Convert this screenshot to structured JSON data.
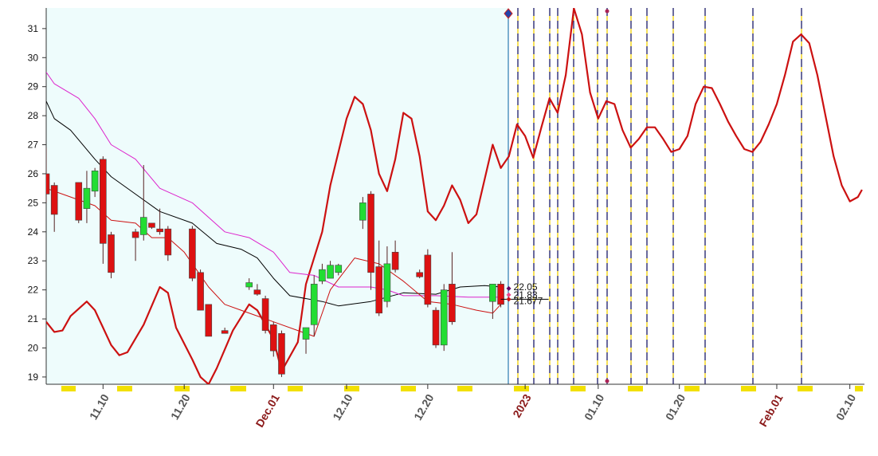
{
  "chart_data": {
    "type": "candlestick",
    "xlim": [
      2,
      102.8
    ],
    "ylim": [
      18.75,
      31.71
    ],
    "yticks": [
      19,
      20,
      21,
      22,
      23,
      24,
      25,
      26,
      27,
      28,
      29,
      30,
      31
    ],
    "xticks": [
      {
        "value": 9,
        "label": "11.10",
        "color": "#555555"
      },
      {
        "value": 19,
        "label": "11.20",
        "color": "#555555"
      },
      {
        "value": 30,
        "label": "Dec.01",
        "color": "#8b1a1a"
      },
      {
        "value": 39,
        "label": "12.10",
        "color": "#555555"
      },
      {
        "value": 49,
        "label": "12.20",
        "color": "#555555"
      },
      {
        "value": 61,
        "label": "2023",
        "color": "#8b1a1a"
      },
      {
        "value": 70,
        "label": "01.10",
        "color": "#555555"
      },
      {
        "value": 80,
        "label": "01.20",
        "color": "#555555"
      },
      {
        "value": 92,
        "label": "Feb.01",
        "color": "#8b1a1a"
      },
      {
        "value": 101,
        "label": "02.10",
        "color": "#555555"
      }
    ],
    "up_color": "#22dd33",
    "down_color": "#dd1111",
    "candles": {
      "x": [
        2,
        3,
        6,
        7,
        8,
        9,
        10,
        13,
        14,
        15,
        16,
        17,
        20,
        21,
        22,
        24,
        27,
        28,
        29,
        30,
        31,
        34,
        35,
        36,
        37,
        38,
        41,
        42,
        43,
        44,
        45,
        48,
        49,
        50,
        51,
        52,
        57,
        58
      ],
      "open": [
        26.0,
        25.6,
        25.7,
        24.8,
        25.4,
        26.5,
        23.9,
        24.0,
        23.9,
        24.3,
        24.1,
        24.1,
        24.1,
        22.6,
        21.5,
        20.6,
        22.1,
        22.0,
        21.7,
        20.8,
        20.5,
        20.3,
        20.8,
        22.3,
        22.4,
        22.6,
        24.4,
        25.3,
        22.8,
        21.6,
        23.3,
        22.6,
        23.2,
        21.3,
        20.1,
        22.2,
        21.6,
        22.2
      ],
      "high": [
        26.9,
        25.7,
        25.7,
        26.1,
        26.2,
        26.6,
        24.0,
        24.1,
        26.3,
        24.3,
        24.8,
        24.2,
        24.2,
        22.7,
        21.5,
        20.7,
        22.4,
        22.2,
        21.8,
        20.9,
        20.6,
        20.7,
        22.5,
        22.9,
        23.0,
        22.9,
        25.2,
        25.4,
        23.7,
        23.5,
        23.7,
        22.7,
        23.4,
        21.4,
        22.2,
        23.3,
        22.2,
        22.3
      ],
      "low": [
        25.0,
        24.0,
        24.3,
        24.3,
        25.2,
        22.9,
        22.4,
        23.0,
        23.7,
        24.1,
        23.9,
        23.0,
        22.3,
        21.3,
        20.4,
        20.5,
        22.0,
        21.8,
        20.5,
        19.7,
        19.0,
        19.8,
        20.4,
        22.2,
        22.4,
        22.5,
        24.1,
        22.0,
        21.1,
        21.4,
        22.6,
        22.4,
        21.4,
        20.0,
        19.9,
        20.8,
        21.0,
        21.4
      ],
      "close": [
        25.3,
        24.6,
        24.4,
        25.5,
        26.1,
        23.6,
        22.6,
        23.8,
        24.5,
        24.15,
        24.0,
        23.2,
        22.4,
        21.3,
        20.4,
        20.5,
        22.25,
        21.85,
        20.6,
        19.9,
        19.1,
        20.7,
        22.2,
        22.7,
        22.85,
        22.85,
        25.0,
        22.6,
        21.2,
        22.9,
        22.7,
        22.45,
        21.5,
        20.1,
        22.0,
        20.9,
        22.2,
        21.5
      ]
    },
    "lines": [
      {
        "color": "#cc1111",
        "width": 2.2,
        "x": [
          2,
          3,
          4,
          5,
          7,
          8,
          10,
          11,
          12,
          14,
          16,
          17,
          18,
          20,
          21,
          22,
          23,
          25,
          27,
          28,
          30,
          31,
          33,
          34,
          36,
          37,
          39,
          40,
          41,
          42,
          43,
          44,
          45,
          46,
          47,
          48,
          49,
          50,
          51,
          52,
          53,
          54,
          55,
          56,
          57,
          58,
          59,
          60,
          61,
          62,
          63,
          64,
          65,
          66,
          67,
          68,
          69,
          70,
          71,
          72,
          73,
          74,
          75,
          76,
          77,
          78,
          79,
          80,
          81,
          82,
          83,
          84,
          85,
          86,
          87,
          88,
          89,
          90,
          91,
          92,
          93,
          94,
          95,
          96,
          97,
          98,
          99,
          100,
          101,
          102,
          102.5
        ],
        "values": [
          20.9,
          20.55,
          20.6,
          21.1,
          21.6,
          21.3,
          20.1,
          19.75,
          19.85,
          20.8,
          22.1,
          21.9,
          20.7,
          19.6,
          19.0,
          18.75,
          19.3,
          20.6,
          21.5,
          21.3,
          20.3,
          19.2,
          20.2,
          22.2,
          24.0,
          25.6,
          27.9,
          28.65,
          28.4,
          27.5,
          26.0,
          25.4,
          26.5,
          28.1,
          27.9,
          26.6,
          24.7,
          24.4,
          24.9,
          25.6,
          25.1,
          24.3,
          24.6,
          25.8,
          27.0,
          26.2,
          26.6,
          27.7,
          27.3,
          26.55,
          27.6,
          28.6,
          28.1,
          29.4,
          31.7,
          30.8,
          28.8,
          27.9,
          28.5,
          28.4,
          27.5,
          26.9,
          27.2,
          27.6,
          27.6,
          27.2,
          26.75,
          26.85,
          27.3,
          28.4,
          29.0,
          28.95,
          28.4,
          27.8,
          27.3,
          26.85,
          26.75,
          27.1,
          27.7,
          28.4,
          29.4,
          30.55,
          30.8,
          30.5,
          29.4,
          28.0,
          26.6,
          25.6,
          25.05,
          25.2,
          25.45
        ]
      },
      {
        "color": "#000000",
        "width": 1,
        "x": [
          2,
          3,
          5,
          8,
          10,
          13,
          16,
          20,
          23,
          26,
          28,
          30,
          32,
          36,
          38,
          42,
          46,
          50,
          53,
          56,
          58
        ],
        "values": [
          28.5,
          27.9,
          27.5,
          26.5,
          25.9,
          25.3,
          24.7,
          24.3,
          23.6,
          23.4,
          23.1,
          22.4,
          21.8,
          21.6,
          21.45,
          21.6,
          21.9,
          21.85,
          22.1,
          22.15,
          22.1
        ]
      },
      {
        "color": "#dd22cc",
        "width": 1,
        "x": [
          2,
          3,
          6,
          8,
          10,
          13,
          16,
          20,
          24,
          27,
          30,
          32,
          35,
          38,
          42,
          44,
          46,
          50,
          54,
          58
        ],
        "values": [
          29.5,
          29.1,
          28.6,
          27.9,
          27.0,
          26.5,
          25.5,
          25.0,
          24.0,
          23.8,
          23.3,
          22.6,
          22.5,
          22.1,
          22.1,
          22.0,
          21.8,
          21.8,
          21.75,
          21.75
        ]
      },
      {
        "color": "#cc1111",
        "width": 1,
        "x": [
          2,
          5,
          8,
          10,
          13,
          15,
          17,
          19,
          22,
          24,
          26,
          28,
          30,
          33,
          35,
          37,
          40,
          43,
          46,
          49,
          52,
          55,
          57,
          58
        ],
        "values": [
          25.5,
          25.2,
          24.9,
          24.4,
          24.3,
          23.8,
          23.8,
          23.3,
          22.1,
          21.5,
          21.3,
          21.1,
          20.9,
          20.6,
          20.4,
          22.0,
          23.1,
          22.9,
          22.3,
          21.6,
          21.5,
          21.3,
          21.2,
          21.5
        ]
      }
    ],
    "price_labels": [
      {
        "value": 22.05,
        "label": "22.05",
        "color": "#660066"
      },
      {
        "value": 21.83,
        "label": "21.83",
        "color": "#ee4488"
      },
      {
        "value": 21.677,
        "label": "21.677",
        "color": "#cc1111"
      }
    ]
  }
}
